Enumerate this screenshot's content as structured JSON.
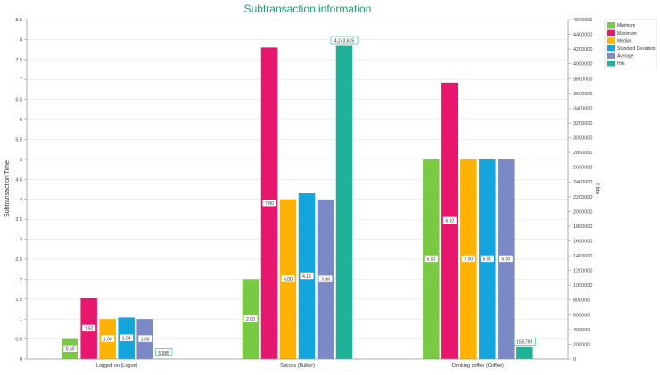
{
  "chart_data": {
    "type": "bar",
    "title": "Subtransaction information",
    "ylabel": "Subtransaction Time",
    "y2label": "Hits",
    "ylim": [
      0,
      8.5
    ],
    "y2lim": [
      0,
      4600000
    ],
    "yticks": [
      "0",
      "0.5",
      "1",
      "1.5",
      "2",
      "2.5",
      "3",
      "3.5",
      "4",
      "4.5",
      "5",
      "5.5",
      "6",
      "6.5",
      "7",
      "7.5",
      "8",
      "8.5"
    ],
    "y2ticks": [
      "0",
      "200000",
      "400000",
      "600000",
      "800000",
      "1000000",
      "1200000",
      "1400000",
      "1600000",
      "1800000",
      "2000000",
      "2200000",
      "2400000",
      "2600000",
      "2800000",
      "3000000",
      "3200000",
      "3400000",
      "3600000",
      "3800000",
      "4000000",
      "4200000",
      "4400000",
      "4600000"
    ],
    "categories": [
      "Logged on (Logon)",
      "Succes (Bulker)",
      "Drinking coffee (Coffee)"
    ],
    "series": [
      {
        "name": "Minimum",
        "color": "#7ac943",
        "axis": "left",
        "values": [
          0.5,
          2,
          5
        ],
        "labels": [
          "0.50",
          "2.00",
          "5.00"
        ]
      },
      {
        "name": "Maximum",
        "color": "#e8176d",
        "axis": "left",
        "values": [
          1.52,
          7.8,
          6.92
        ],
        "labels": [
          "1.52",
          "7.80",
          "6.92"
        ]
      },
      {
        "name": "Median",
        "color": "#ffb300",
        "axis": "left",
        "values": [
          1,
          4,
          5
        ],
        "labels": [
          "1.00",
          "4.00",
          "5.00"
        ]
      },
      {
        "name": "Standard Deviation",
        "color": "#14a5de",
        "axis": "left",
        "values": [
          1.04,
          4.15,
          5
        ],
        "labels": [
          "1.04",
          "4.15",
          "5.00"
        ]
      },
      {
        "name": "Average",
        "color": "#7b8ac6",
        "axis": "left",
        "values": [
          1,
          3.99,
          5
        ],
        "labels": [
          "1.00",
          "3.99",
          "5.00"
        ]
      },
      {
        "name": "Hits",
        "color": "#1fb299",
        "axis": "right",
        "values": [
          5585,
          4243625,
          159795
        ],
        "labels": [
          "5,585",
          "4,243,625",
          "159,795"
        ]
      }
    ],
    "grid": true,
    "legend": "top-right"
  }
}
